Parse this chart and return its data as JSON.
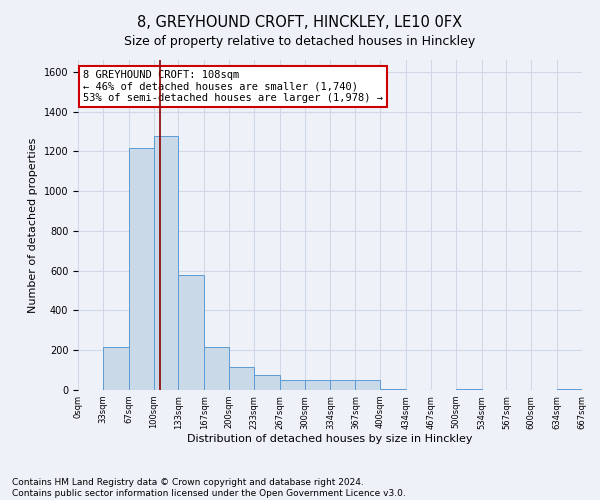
{
  "title": "8, GREYHOUND CROFT, HINCKLEY, LE10 0FX",
  "subtitle": "Size of property relative to detached houses in Hinckley",
  "xlabel": "Distribution of detached houses by size in Hinckley",
  "ylabel": "Number of detached properties",
  "footnote1": "Contains HM Land Registry data © Crown copyright and database right 2024.",
  "footnote2": "Contains public sector information licensed under the Open Government Licence v3.0.",
  "annotation_line1": "8 GREYHOUND CROFT: 108sqm",
  "annotation_line2": "← 46% of detached houses are smaller (1,740)",
  "annotation_line3": "53% of semi-detached houses are larger (1,978) →",
  "bin_edges": [
    0,
    33,
    67,
    100,
    133,
    167,
    200,
    233,
    267,
    300,
    334,
    367,
    400,
    434,
    467,
    500,
    534,
    567,
    600,
    634,
    667
  ],
  "bar_heights": [
    0,
    215,
    1215,
    1280,
    580,
    215,
    115,
    75,
    50,
    50,
    50,
    50,
    5,
    0,
    0,
    5,
    0,
    0,
    0,
    5
  ],
  "bar_color": "#c9d9e8",
  "bar_edge_color": "#5b9bd5",
  "vline_x": 108,
  "vline_color": "#8b0000",
  "ylim": [
    0,
    1660
  ],
  "yticks": [
    0,
    200,
    400,
    600,
    800,
    1000,
    1200,
    1400,
    1600
  ],
  "grid_color": "#d0d8e8",
  "background_color": "#eef2f8",
  "title_fontsize": 10.5,
  "subtitle_fontsize": 9,
  "annotation_fontsize": 7.5,
  "footnote_fontsize": 6.5,
  "xlabel_fontsize": 8,
  "ylabel_fontsize": 8,
  "ytick_fontsize": 7,
  "xtick_fontsize": 6
}
